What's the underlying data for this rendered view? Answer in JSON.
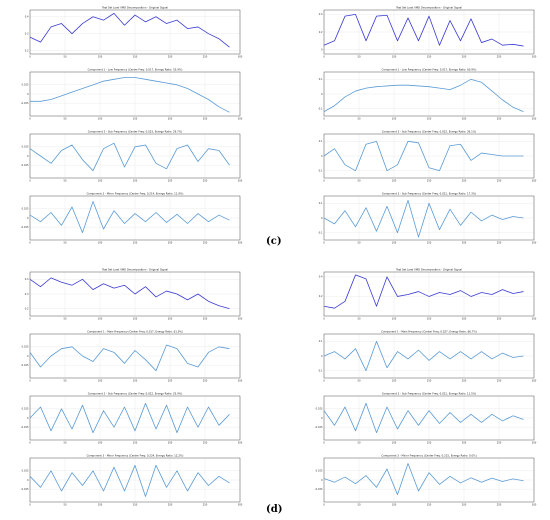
{
  "figure": {
    "panel_labels": [
      "(c)",
      "(d)"
    ]
  },
  "chart_data": [
    {
      "type": "line",
      "group": "c",
      "col": 0,
      "row": 0,
      "title": "Test Set Load VMD Decomposition - Original Signal",
      "color": "#3b3bd4",
      "xlim": [
        0,
        300
      ],
      "ylim": [
        0.18,
        0.44
      ],
      "xticks": [
        0,
        50,
        100,
        150,
        200,
        250,
        300
      ],
      "yticks": [
        0.2,
        0.3,
        0.4
      ],
      "x": [
        0,
        15,
        30,
        45,
        60,
        75,
        90,
        105,
        120,
        135,
        150,
        165,
        180,
        195,
        210,
        225,
        240,
        255,
        270,
        285
      ],
      "y": [
        0.28,
        0.25,
        0.34,
        0.36,
        0.3,
        0.36,
        0.4,
        0.38,
        0.42,
        0.35,
        0.41,
        0.37,
        0.4,
        0.36,
        0.38,
        0.33,
        0.34,
        0.3,
        0.27,
        0.22
      ]
    },
    {
      "type": "line",
      "group": "c",
      "col": 0,
      "row": 1,
      "title": "Component 1 - Low Frequency (Center Freq: 0.017, Energy Ratio: 55.9%)",
      "color": "#5b9bd5",
      "xlim": [
        0,
        300
      ],
      "ylim": [
        -0.06,
        0.06
      ],
      "xticks": [
        0,
        50,
        100,
        150,
        200,
        250,
        300
      ],
      "yticks": [
        -0.025,
        0.0,
        0.025
      ],
      "x": [
        0,
        15,
        30,
        45,
        60,
        75,
        90,
        105,
        120,
        135,
        150,
        165,
        180,
        195,
        210,
        225,
        240,
        255,
        270,
        285
      ],
      "y": [
        -0.02,
        -0.02,
        -0.015,
        -0.005,
        0.005,
        0.015,
        0.025,
        0.035,
        0.04,
        0.045,
        0.045,
        0.04,
        0.035,
        0.03,
        0.025,
        0.015,
        0.0,
        -0.015,
        -0.035,
        -0.05
      ]
    },
    {
      "type": "line",
      "group": "c",
      "col": 0,
      "row": 2,
      "title": "Component 2 - Sub Frequency (Center Freq: 0.023, Energy Ratio: 29.7%)",
      "color": "#5b9bd5",
      "xlim": [
        0,
        300
      ],
      "ylim": [
        -0.06,
        0.06
      ],
      "xticks": [
        0,
        50,
        100,
        150,
        200,
        250,
        300
      ],
      "yticks": [
        -0.025,
        0.0,
        0.025
      ],
      "x": [
        0,
        15,
        30,
        45,
        60,
        75,
        90,
        105,
        120,
        135,
        150,
        165,
        180,
        195,
        210,
        225,
        240,
        255,
        270,
        285
      ],
      "y": [
        0.02,
        0.0,
        -0.02,
        0.015,
        0.03,
        -0.01,
        -0.04,
        0.02,
        0.035,
        -0.03,
        0.025,
        0.03,
        -0.02,
        -0.035,
        0.02,
        0.03,
        -0.015,
        0.02,
        0.015,
        -0.025
      ]
    },
    {
      "type": "line",
      "group": "c",
      "col": 0,
      "row": 3,
      "title": "Component 3 - Minor Frequency (Center Freq: 0.214, Energy Ratio: 11.9%)",
      "color": "#5b9bd5",
      "xlim": [
        0,
        300
      ],
      "ylim": [
        -0.06,
        0.06
      ],
      "xticks": [
        0,
        50,
        100,
        150,
        200,
        250,
        300
      ],
      "yticks": [
        -0.025,
        0.0,
        0.025
      ],
      "x": [
        0,
        15,
        30,
        45,
        60,
        75,
        90,
        105,
        120,
        135,
        150,
        165,
        180,
        195,
        210,
        225,
        240,
        255,
        270,
        285
      ],
      "y": [
        0.008,
        -0.01,
        0.015,
        -0.02,
        0.03,
        -0.04,
        0.045,
        -0.03,
        0.02,
        -0.015,
        0.012,
        -0.01,
        0.015,
        -0.012,
        0.01,
        -0.015,
        0.012,
        -0.01,
        0.008,
        -0.006
      ]
    },
    {
      "type": "line",
      "group": "c",
      "col": 1,
      "row": 0,
      "title": "Test Set Load VMD Decomposition - Original Signal",
      "color": "#3b3bd4",
      "xlim": [
        0,
        300
      ],
      "ylim": [
        -0.05,
        0.45
      ],
      "xticks": [
        0,
        50,
        100,
        150,
        200,
        250,
        300
      ],
      "yticks": [
        0.0,
        0.2,
        0.4
      ],
      "x": [
        0,
        15,
        30,
        45,
        60,
        75,
        90,
        105,
        120,
        135,
        150,
        165,
        180,
        195,
        210,
        225,
        240,
        255,
        270,
        285
      ],
      "y": [
        0.05,
        0.1,
        0.38,
        0.4,
        0.1,
        0.38,
        0.39,
        0.1,
        0.36,
        0.1,
        0.38,
        0.05,
        0.33,
        0.1,
        0.35,
        0.08,
        0.12,
        0.05,
        0.06,
        0.04
      ]
    },
    {
      "type": "line",
      "group": "c",
      "col": 1,
      "row": 1,
      "title": "Component 1 - Low Frequency (Center Freq: 0.017, Energy Ratio: 60.9%)",
      "color": "#5b9bd5",
      "xlim": [
        0,
        300
      ],
      "ylim": [
        -0.15,
        0.15
      ],
      "xticks": [
        0,
        50,
        100,
        150,
        200,
        250,
        300
      ],
      "yticks": [
        -0.1,
        0.0,
        0.1
      ],
      "x": [
        0,
        15,
        30,
        45,
        60,
        75,
        90,
        105,
        120,
        135,
        150,
        165,
        180,
        195,
        210,
        225,
        240,
        255,
        270,
        285
      ],
      "y": [
        -0.12,
        -0.08,
        -0.02,
        0.02,
        0.04,
        0.05,
        0.055,
        0.06,
        0.06,
        0.055,
        0.05,
        0.04,
        0.03,
        0.06,
        0.1,
        0.08,
        0.02,
        -0.04,
        -0.09,
        -0.12
      ]
    },
    {
      "type": "line",
      "group": "c",
      "col": 1,
      "row": 2,
      "title": "Component 2 - Sub Frequency (Center Freq: 0.022, Energy Ratio: 26.1%)",
      "color": "#5b9bd5",
      "xlim": [
        0,
        300
      ],
      "ylim": [
        -0.15,
        0.15
      ],
      "xticks": [
        0,
        50,
        100,
        150,
        200,
        250,
        300
      ],
      "yticks": [
        -0.1,
        0.0,
        0.1
      ],
      "x": [
        0,
        15,
        30,
        45,
        60,
        75,
        90,
        105,
        120,
        135,
        150,
        165,
        180,
        195,
        210,
        225,
        240,
        255,
        270,
        285
      ],
      "y": [
        0.0,
        0.05,
        -0.06,
        -0.1,
        0.08,
        0.1,
        -0.1,
        -0.06,
        0.1,
        0.09,
        -0.08,
        -0.1,
        0.07,
        0.08,
        -0.03,
        0.02,
        0.01,
        0.0,
        0.0,
        0.0
      ]
    },
    {
      "type": "line",
      "group": "c",
      "col": 1,
      "row": 3,
      "title": "Component 3 - Sub Frequency (Center Freq: 0.021, Energy Ratio: 17.3%)",
      "color": "#5b9bd5",
      "xlim": [
        0,
        300
      ],
      "ylim": [
        -0.15,
        0.15
      ],
      "xticks": [
        0,
        50,
        100,
        150,
        200,
        250,
        300
      ],
      "yticks": [
        -0.1,
        0.0,
        0.1
      ],
      "x": [
        0,
        15,
        30,
        45,
        60,
        75,
        90,
        105,
        120,
        135,
        150,
        165,
        180,
        195,
        210,
        225,
        240,
        255,
        270,
        285
      ],
      "y": [
        0.0,
        -0.04,
        0.05,
        -0.06,
        0.07,
        -0.09,
        0.08,
        -0.1,
        0.12,
        -0.13,
        0.1,
        -0.08,
        0.06,
        -0.05,
        0.04,
        -0.02,
        0.02,
        -0.01,
        0.01,
        0.0
      ]
    },
    {
      "type": "line",
      "group": "d",
      "col": 0,
      "row": 0,
      "title": "Test Set Load VMD Decomposition - Original Signal",
      "color": "#3b3bd4",
      "xlim": [
        0,
        300
      ],
      "ylim": [
        0.15,
        0.45
      ],
      "xticks": [
        0,
        50,
        100,
        150,
        200,
        250,
        300
      ],
      "yticks": [
        0.2,
        0.3,
        0.4
      ],
      "x": [
        0,
        15,
        30,
        45,
        60,
        75,
        90,
        105,
        120,
        135,
        150,
        165,
        180,
        195,
        210,
        225,
        240,
        255,
        270,
        285
      ],
      "y": [
        0.4,
        0.35,
        0.41,
        0.38,
        0.36,
        0.4,
        0.33,
        0.37,
        0.34,
        0.36,
        0.3,
        0.35,
        0.28,
        0.32,
        0.3,
        0.26,
        0.3,
        0.25,
        0.22,
        0.2
      ]
    },
    {
      "type": "line",
      "group": "d",
      "col": 0,
      "row": 1,
      "title": "Component 1 - Main Frequency (Center Freq: 0.017, Energy Ratio: 61.9%)",
      "color": "#5b9bd5",
      "xlim": [
        0,
        300
      ],
      "ylim": [
        -0.06,
        0.06
      ],
      "xticks": [
        0,
        50,
        100,
        150,
        200,
        250,
        300
      ],
      "yticks": [
        -0.025,
        0.0,
        0.025
      ],
      "x": [
        0,
        15,
        30,
        45,
        60,
        75,
        90,
        105,
        120,
        135,
        150,
        165,
        180,
        195,
        210,
        225,
        240,
        255,
        270,
        285
      ],
      "y": [
        0.01,
        -0.03,
        0.0,
        0.02,
        0.025,
        0.0,
        -0.015,
        0.02,
        0.01,
        -0.02,
        0.015,
        -0.01,
        -0.04,
        0.03,
        0.02,
        -0.02,
        -0.03,
        0.01,
        0.025,
        0.02
      ]
    },
    {
      "type": "line",
      "group": "d",
      "col": 0,
      "row": 2,
      "title": "Component 2 - Sub Frequency (Center Freq: 0.022, Energy Ratio: 25.9%)",
      "color": "#5b9bd5",
      "xlim": [
        0,
        300
      ],
      "ylim": [
        -0.06,
        0.06
      ],
      "xticks": [
        0,
        50,
        100,
        150,
        200,
        250,
        300
      ],
      "yticks": [
        -0.025,
        0.0,
        0.025
      ],
      "x": [
        0,
        15,
        30,
        45,
        60,
        75,
        90,
        105,
        120,
        135,
        150,
        165,
        180,
        195,
        210,
        225,
        240,
        255,
        270,
        285
      ],
      "y": [
        0.0,
        0.03,
        -0.035,
        0.025,
        -0.03,
        0.035,
        -0.04,
        0.02,
        -0.025,
        0.03,
        -0.035,
        0.04,
        -0.03,
        0.035,
        -0.04,
        0.03,
        -0.025,
        0.03,
        -0.02,
        0.01
      ]
    },
    {
      "type": "line",
      "group": "d",
      "col": 0,
      "row": 3,
      "title": "Component 3 - Minor Frequency (Center Freq: 0.224, Energy Ratio: 12.2%)",
      "color": "#5b9bd5",
      "xlim": [
        0,
        300
      ],
      "ylim": [
        -0.06,
        0.06
      ],
      "xticks": [
        0,
        50,
        100,
        150,
        200,
        250,
        300
      ],
      "yticks": [
        -0.025,
        0.0,
        0.025
      ],
      "x": [
        0,
        15,
        30,
        45,
        60,
        75,
        90,
        105,
        120,
        135,
        150,
        165,
        180,
        195,
        210,
        225,
        240,
        255,
        270,
        285
      ],
      "y": [
        0.01,
        -0.02,
        0.025,
        -0.03,
        0.02,
        -0.015,
        0.025,
        -0.03,
        0.035,
        -0.03,
        0.04,
        -0.045,
        0.04,
        -0.02,
        0.025,
        -0.03,
        0.02,
        -0.015,
        0.01,
        -0.008
      ]
    },
    {
      "type": "line",
      "group": "d",
      "col": 1,
      "row": 0,
      "title": "Test Set Load VMD Decomposition - Original Signal",
      "color": "#3b3bd4",
      "xlim": [
        0,
        300
      ],
      "ylim": [
        0.0,
        0.45
      ],
      "xticks": [
        0,
        50,
        100,
        150,
        200,
        250,
        300
      ],
      "yticks": [
        0.2,
        0.4
      ],
      "x": [
        0,
        15,
        30,
        45,
        60,
        75,
        90,
        105,
        120,
        135,
        150,
        165,
        180,
        195,
        210,
        225,
        240,
        255,
        270,
        285
      ],
      "y": [
        0.1,
        0.08,
        0.15,
        0.42,
        0.38,
        0.1,
        0.4,
        0.2,
        0.22,
        0.25,
        0.2,
        0.24,
        0.22,
        0.26,
        0.2,
        0.24,
        0.22,
        0.27,
        0.23,
        0.25
      ]
    },
    {
      "type": "line",
      "group": "d",
      "col": 1,
      "row": 1,
      "title": "Component 1 - Main Frequency (Center Freq: 0.027, Energy Ratio: 86.7%)",
      "color": "#5b9bd5",
      "xlim": [
        0,
        300
      ],
      "ylim": [
        -0.15,
        0.15
      ],
      "xticks": [
        0,
        50,
        100,
        150,
        200,
        250,
        300
      ],
      "yticks": [
        -0.1,
        0.0,
        0.1
      ],
      "x": [
        0,
        15,
        30,
        45,
        60,
        75,
        90,
        105,
        120,
        135,
        150,
        165,
        180,
        195,
        210,
        225,
        240,
        255,
        270,
        285
      ],
      "y": [
        0.0,
        0.03,
        -0.02,
        0.05,
        -0.1,
        0.1,
        -0.08,
        0.03,
        -0.02,
        0.04,
        -0.03,
        0.03,
        -0.02,
        0.03,
        -0.02,
        0.03,
        -0.02,
        0.02,
        -0.01,
        0.0
      ]
    },
    {
      "type": "line",
      "group": "d",
      "col": 1,
      "row": 2,
      "title": "Component 2 - Sub Frequency (Center Freq: 0.021, Energy Ratio: 11.5%)",
      "color": "#5b9bd5",
      "xlim": [
        0,
        300
      ],
      "ylim": [
        -0.06,
        0.06
      ],
      "xticks": [
        0,
        50,
        100,
        150,
        200,
        250,
        300
      ],
      "yticks": [
        -0.025,
        0.0,
        0.025
      ],
      "x": [
        0,
        15,
        30,
        45,
        60,
        75,
        90,
        105,
        120,
        135,
        150,
        165,
        180,
        195,
        210,
        225,
        240,
        255,
        270,
        285
      ],
      "y": [
        0.02,
        -0.02,
        0.03,
        -0.035,
        0.04,
        -0.04,
        0.03,
        -0.03,
        0.02,
        -0.02,
        0.02,
        -0.015,
        0.015,
        -0.012,
        0.01,
        -0.012,
        0.01,
        -0.008,
        0.006,
        -0.004
      ]
    },
    {
      "type": "line",
      "group": "d",
      "col": 1,
      "row": 3,
      "title": "Component 3 - Minor Frequency (Center Freq: 0.215, Energy Ratio: 0.0%)",
      "color": "#5b9bd5",
      "xlim": [
        0,
        300
      ],
      "ylim": [
        -0.06,
        0.06
      ],
      "xticks": [
        0,
        50,
        100,
        150,
        200,
        250,
        300
      ],
      "yticks": [
        -0.025,
        0.0,
        0.025
      ],
      "x": [
        0,
        15,
        30,
        45,
        60,
        75,
        90,
        105,
        120,
        135,
        150,
        165,
        180,
        195,
        210,
        225,
        240,
        255,
        270,
        285
      ],
      "y": [
        0.004,
        -0.006,
        0.008,
        -0.01,
        0.012,
        -0.02,
        0.03,
        -0.04,
        0.045,
        -0.03,
        0.02,
        -0.012,
        0.01,
        -0.008,
        0.006,
        -0.006,
        0.005,
        -0.004,
        0.003,
        -0.002
      ]
    }
  ]
}
